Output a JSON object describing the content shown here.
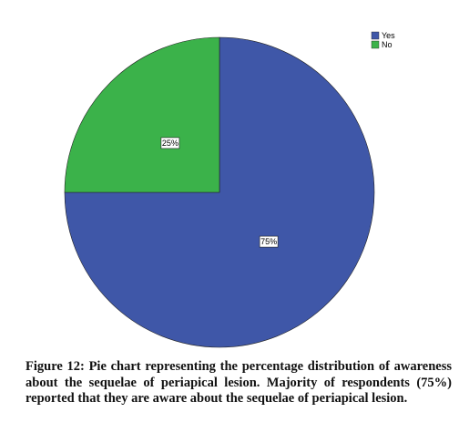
{
  "chart_data": {
    "type": "pie",
    "categories": [
      "Yes",
      "No"
    ],
    "values": [
      75,
      25
    ],
    "value_labels": [
      "75%",
      "25%"
    ],
    "colors": [
      "#3f57a8",
      "#3bb24a"
    ],
    "legend": "top-right",
    "caption": "Figure 12: Pie chart representing the percentage distribution of awareness about the sequelae of periapical lesion. Majority of respondents (75%) reported that they are aware about the sequelae of periapical lesion."
  }
}
